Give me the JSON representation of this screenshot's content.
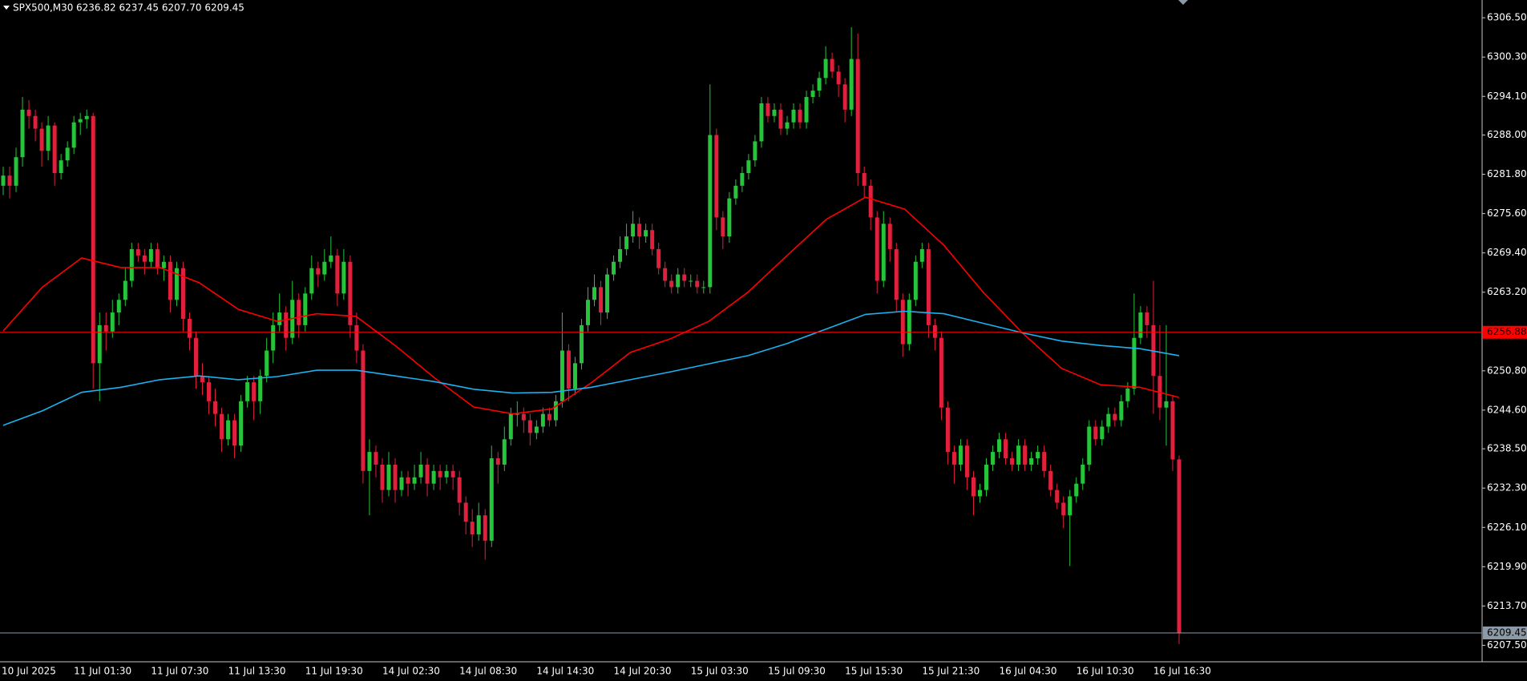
{
  "chart_data": {
    "type": "candlestick",
    "symbol": "SPX500,M30",
    "quote": "6236.82 6237.45 6207.70 6209.45",
    "up_color": "#26c43a",
    "down_color": "#e0203c",
    "candles": [
      [
        6280,
        6283,
        6278.5,
        6281.6
      ],
      [
        6281.6,
        6283,
        6278,
        6280
      ],
      [
        6280,
        6286,
        6279,
        6284.5
      ],
      [
        6284.5,
        6294,
        6283,
        6292
      ],
      [
        6292,
        6293.5,
        6289,
        6291
      ],
      [
        6291,
        6292,
        6287,
        6289
      ],
      [
        6289,
        6290,
        6283,
        6285.5
      ],
      [
        6285.5,
        6291,
        6284,
        6289.5
      ],
      [
        6289.5,
        6290,
        6280,
        6282
      ],
      [
        6282,
        6285,
        6281,
        6284
      ],
      [
        6284,
        6287,
        6283,
        6286
      ],
      [
        6286,
        6291,
        6285,
        6290
      ],
      [
        6290,
        6291.5,
        6288,
        6290.5
      ],
      [
        6290.5,
        6292,
        6289,
        6291
      ],
      [
        6291,
        6291.5,
        6248,
        6252
      ],
      [
        6252,
        6260,
        6246,
        6258
      ],
      [
        6258,
        6260,
        6254,
        6257
      ],
      [
        6257,
        6262,
        6256,
        6260
      ],
      [
        6260,
        6263,
        6258,
        6262
      ],
      [
        6262,
        6267,
        6261,
        6265
      ],
      [
        6265,
        6271,
        6264,
        6270
      ],
      [
        6270,
        6271,
        6268,
        6269
      ],
      [
        6269,
        6270,
        6266,
        6268
      ],
      [
        6268,
        6271,
        6267,
        6270
      ],
      [
        6270,
        6271,
        6266,
        6267
      ],
      [
        6267,
        6269,
        6265,
        6268
      ],
      [
        6268,
        6269,
        6260,
        6262
      ],
      [
        6262,
        6268,
        6261,
        6267
      ],
      [
        6267,
        6268,
        6257,
        6259
      ],
      [
        6259,
        6260,
        6254,
        6256
      ],
      [
        6256,
        6257,
        6248,
        6250
      ],
      [
        6250,
        6252,
        6247,
        6249
      ],
      [
        6249,
        6250,
        6244,
        6246
      ],
      [
        6246,
        6248,
        6242,
        6244
      ],
      [
        6244,
        6245,
        6238,
        6240
      ],
      [
        6240,
        6244,
        6239,
        6243
      ],
      [
        6243,
        6244,
        6237,
        6239
      ],
      [
        6239,
        6247,
        6238,
        6246
      ],
      [
        6246,
        6250,
        6245,
        6249
      ],
      [
        6249,
        6250,
        6243,
        6246
      ],
      [
        6246,
        6251,
        6244,
        6250
      ],
      [
        6250,
        6256,
        6249,
        6254
      ],
      [
        6254,
        6260,
        6252,
        6258
      ],
      [
        6258,
        6263,
        6257,
        6260
      ],
      [
        6260,
        6261,
        6254,
        6256
      ],
      [
        6256,
        6265,
        6255,
        6262
      ],
      [
        6262,
        6263,
        6256,
        6258
      ],
      [
        6258,
        6264,
        6257,
        6263
      ],
      [
        6263,
        6269,
        6262,
        6267
      ],
      [
        6267,
        6268,
        6264,
        6266
      ],
      [
        6266,
        6270,
        6265,
        6268
      ],
      [
        6268,
        6272,
        6267,
        6269
      ],
      [
        6269,
        6270,
        6261,
        6263
      ],
      [
        6263,
        6270,
        6262,
        6268
      ],
      [
        6268,
        6269,
        6256,
        6258
      ],
      [
        6258,
        6260,
        6252,
        6254
      ],
      [
        6254,
        6255,
        6233,
        6235
      ],
      [
        6235,
        6240,
        6228,
        6238
      ],
      [
        6238,
        6239,
        6234,
        6236
      ],
      [
        6236,
        6237,
        6230,
        6232
      ],
      [
        6232,
        6238,
        6231,
        6236
      ],
      [
        6236,
        6237,
        6230,
        6232
      ],
      [
        6232,
        6235,
        6231,
        6234
      ],
      [
        6234,
        6235,
        6231,
        6233
      ],
      [
        6233,
        6236,
        6232,
        6234
      ],
      [
        6234,
        6238,
        6233,
        6236
      ],
      [
        6236,
        6237,
        6231,
        6233
      ],
      [
        6233,
        6236,
        6232,
        6235
      ],
      [
        6235,
        6236,
        6232,
        6234
      ],
      [
        6234,
        6236,
        6233,
        6235
      ],
      [
        6235,
        6236,
        6232,
        6234
      ],
      [
        6234,
        6235,
        6228,
        6230
      ],
      [
        6230,
        6231,
        6225,
        6227
      ],
      [
        6227,
        6229,
        6223,
        6225
      ],
      [
        6225,
        6230,
        6224,
        6228
      ],
      [
        6228,
        6229,
        6221,
        6224
      ],
      [
        6224,
        6239,
        6223,
        6237
      ],
      [
        6237,
        6238,
        6233,
        6236
      ],
      [
        6236,
        6242,
        6235,
        6240
      ],
      [
        6240,
        6245,
        6239,
        6244
      ],
      [
        6244,
        6246,
        6242,
        6244
      ],
      [
        6244,
        6245,
        6241,
        6243
      ],
      [
        6243,
        6244,
        6239,
        6241
      ],
      [
        6241,
        6243,
        6240,
        6242
      ],
      [
        6242,
        6245,
        6241,
        6244
      ],
      [
        6244,
        6245,
        6242,
        6243
      ],
      [
        6243,
        6247,
        6242,
        6246
      ],
      [
        6246,
        6260,
        6245,
        6254
      ],
      [
        6254,
        6255,
        6246,
        6248
      ],
      [
        6248,
        6253,
        6247,
        6252
      ],
      [
        6252,
        6259,
        6251,
        6258
      ],
      [
        6258,
        6264,
        6257,
        6262
      ],
      [
        6262,
        6266,
        6261,
        6264
      ],
      [
        6264,
        6265,
        6258,
        6260
      ],
      [
        6260,
        6267,
        6259,
        6266
      ],
      [
        6266,
        6269,
        6265,
        6268
      ],
      [
        6268,
        6272,
        6267,
        6270
      ],
      [
        6270,
        6274,
        6269,
        6272
      ],
      [
        6272,
        6276,
        6271,
        6274
      ],
      [
        6274,
        6275,
        6270,
        6272
      ],
      [
        6272,
        6274,
        6271,
        6273
      ],
      [
        6273,
        6274,
        6269,
        6270
      ],
      [
        6270,
        6271,
        6266,
        6267
      ],
      [
        6267,
        6268,
        6264,
        6265
      ],
      [
        6265,
        6266,
        6263,
        6264
      ],
      [
        6264,
        6267,
        6263,
        6266
      ],
      [
        6266,
        6267,
        6264,
        6265
      ],
      [
        6265,
        6266,
        6264,
        6265
      ],
      [
        6265,
        6266,
        6263,
        6264
      ],
      [
        6264,
        6265,
        6263,
        6264
      ],
      [
        6264,
        6296,
        6263,
        6288
      ],
      [
        6288,
        6289,
        6273,
        6275
      ],
      [
        6275,
        6276,
        6270,
        6272
      ],
      [
        6272,
        6279,
        6271,
        6278
      ],
      [
        6278,
        6281,
        6277,
        6280
      ],
      [
        6280,
        6283,
        6279,
        6282
      ],
      [
        6282,
        6285,
        6281,
        6284
      ],
      [
        6284,
        6288,
        6283,
        6287
      ],
      [
        6287,
        6294,
        6286,
        6293
      ],
      [
        6293,
        6294,
        6290,
        6291
      ],
      [
        6291,
        6293,
        6290,
        6292
      ],
      [
        6292,
        6293,
        6288,
        6289
      ],
      [
        6289,
        6291,
        6288,
        6290
      ],
      [
        6290,
        6293,
        6289,
        6292
      ],
      [
        6292,
        6293,
        6289,
        6290
      ],
      [
        6290,
        6295,
        6289,
        6294
      ],
      [
        6294,
        6296,
        6293,
        6295
      ],
      [
        6295,
        6298,
        6294,
        6297
      ],
      [
        6297,
        6302,
        6296,
        6300
      ],
      [
        6300,
        6301,
        6297,
        6298
      ],
      [
        6298,
        6299,
        6294,
        6296
      ],
      [
        6296,
        6297,
        6290,
        6292
      ],
      [
        6292,
        6305,
        6291,
        6300
      ],
      [
        6300,
        6304,
        6280,
        6282
      ],
      [
        6282,
        6283,
        6278,
        6280
      ],
      [
        6280,
        6281,
        6273,
        6275
      ],
      [
        6275,
        6276,
        6263,
        6265
      ],
      [
        6265,
        6276,
        6264,
        6274
      ],
      [
        6274,
        6275,
        6268,
        6270
      ],
      [
        6270,
        6271,
        6260,
        6262
      ],
      [
        6262,
        6263,
        6253,
        6255
      ],
      [
        6255,
        6263,
        6254,
        6262
      ],
      [
        6262,
        6269,
        6261,
        6268
      ],
      [
        6268,
        6271,
        6267,
        6270
      ],
      [
        6270,
        6271,
        6256,
        6258
      ],
      [
        6258,
        6259,
        6254,
        6256
      ],
      [
        6256,
        6257,
        6243,
        6245
      ],
      [
        6245,
        6246,
        6236,
        6238
      ],
      [
        6238,
        6239,
        6233,
        6236
      ],
      [
        6236,
        6240,
        6235,
        6239
      ],
      [
        6239,
        6240,
        6232,
        6234
      ],
      [
        6234,
        6235,
        6228,
        6231
      ],
      [
        6231,
        6233,
        6230,
        6232
      ],
      [
        6232,
        6237,
        6231,
        6236
      ],
      [
        6236,
        6239,
        6235,
        6238
      ],
      [
        6238,
        6241,
        6237,
        6240
      ],
      [
        6240,
        6241,
        6236,
        6237
      ],
      [
        6237,
        6238,
        6235,
        6236
      ],
      [
        6236,
        6240,
        6235,
        6239
      ],
      [
        6239,
        6240,
        6235,
        6236
      ],
      [
        6236,
        6238,
        6235,
        6237
      ],
      [
        6237,
        6239,
        6236,
        6238
      ],
      [
        6238,
        6239,
        6234,
        6235
      ],
      [
        6235,
        6236,
        6231,
        6232
      ],
      [
        6232,
        6233,
        6229,
        6230
      ],
      [
        6230,
        6231,
        6226,
        6228
      ],
      [
        6228,
        6232,
        6220,
        6231
      ],
      [
        6231,
        6234,
        6230,
        6233
      ],
      [
        6233,
        6237,
        6232,
        6236
      ],
      [
        6236,
        6243,
        6235,
        6242
      ],
      [
        6242,
        6243,
        6239,
        6240
      ],
      [
        6240,
        6243,
        6239,
        6242
      ],
      [
        6242,
        6245,
        6241,
        6244
      ],
      [
        6244,
        6245,
        6242,
        6243
      ],
      [
        6243,
        6247,
        6242,
        6246
      ],
      [
        6246,
        6249,
        6245,
        6248
      ],
      [
        6248,
        6263,
        6247,
        6256
      ],
      [
        6256,
        6261,
        6255,
        6260
      ],
      [
        6260,
        6261,
        6256,
        6258
      ],
      [
        6258,
        6265,
        6244,
        6250
      ],
      [
        6250,
        6258,
        6243,
        6245
      ],
      [
        6245,
        6258,
        6239,
        6246
      ],
      [
        6246,
        6247,
        6235,
        6236.82
      ],
      [
        6236.82,
        6237.45,
        6207.7,
        6209.45
      ]
    ],
    "lines": [
      {
        "color": "#ff0000",
        "values": [
          6257.1,
          6264.0,
          6268.6,
          6267.1,
          6267.1,
          6264.7,
          6260.5,
          6258.6,
          6259.8,
          6259.4,
          6254.8,
          6249.7,
          6245.1,
          6244.0,
          6244.8,
          6248.9,
          6253.7,
          6255.8,
          6258.6,
          6263.2,
          6269.0,
          6274.7,
          6278.2,
          6276.3,
          6270.6,
          6263.2,
          6256.8,
          6251.2,
          6248.6,
          6248.2,
          6246.6
        ]
      },
      {
        "color": "#1ab2f0",
        "values": [
          6242.2,
          6244.5,
          6247.4,
          6248.2,
          6249.4,
          6250.0,
          6249.4,
          6249.9,
          6250.9,
          6250.9,
          6250.0,
          6249.1,
          6247.9,
          6247.3,
          6247.4,
          6248.2,
          6249.4,
          6250.6,
          6251.9,
          6253.2,
          6255.1,
          6257.4,
          6259.7,
          6260.2,
          6259.8,
          6258.3,
          6256.8,
          6255.5,
          6254.8,
          6254.3,
          6253.2
        ]
      }
    ],
    "hlines": [
      {
        "value": 6256.88,
        "color": "#ff0000"
      },
      {
        "value": 6209.45,
        "color": "#8c9aa8"
      }
    ],
    "ylim": [
      6204.9,
      6309.3
    ],
    "yticks": [
      {
        "value": 6306.5,
        "label": "6306.50"
      },
      {
        "value": 6300.3,
        "label": "6300.30"
      },
      {
        "value": 6294.1,
        "label": "6294.10"
      },
      {
        "value": 6288,
        "label": "6288.00"
      },
      {
        "value": 6281.8,
        "label": "6281.80"
      },
      {
        "value": 6275.6,
        "label": "6275.60"
      },
      {
        "value": 6269.4,
        "label": "6269.40"
      },
      {
        "value": 6263.2,
        "label": "6263.20"
      },
      {
        "value": 6250.8,
        "label": "6250.80"
      },
      {
        "value": 6244.6,
        "label": "6244.60"
      },
      {
        "value": 6238.5,
        "label": "6238.50"
      },
      {
        "value": 6232.3,
        "label": "6232.30"
      },
      {
        "value": 6226.1,
        "label": "6226.10"
      },
      {
        "value": 6219.9,
        "label": "6219.90"
      },
      {
        "value": 6213.7,
        "label": "6213.70"
      },
      {
        "value": 6207.5,
        "label": "6207.50"
      }
    ],
    "x_labels": [
      "10 Jul 2025",
      "11 Jul 01:30",
      "11 Jul 07:30",
      "11 Jul 13:30",
      "11 Jul 19:30",
      "14 Jul 02:30",
      "14 Jul 08:30",
      "14 Jul 14:30",
      "14 Jul 20:30",
      "15 Jul 03:30",
      "15 Jul 09:30",
      "15 Jul 15:30",
      "15 Jul 21:30",
      "16 Jul 04:30",
      "16 Jul 10:30",
      "16 Jul 16:30"
    ]
  }
}
